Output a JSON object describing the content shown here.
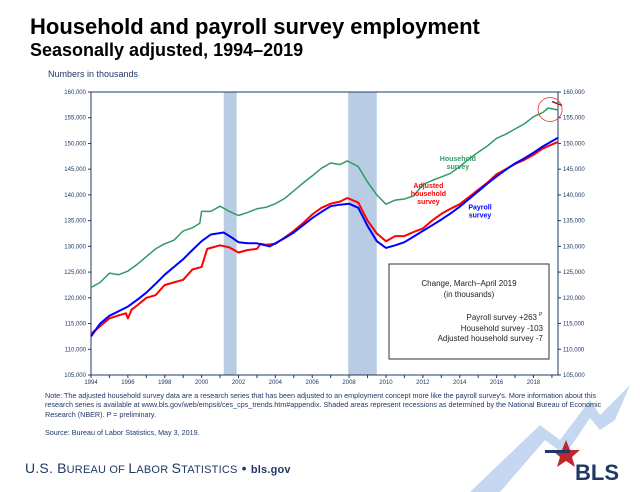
{
  "header": {
    "title": "Household and payroll survey employment",
    "subtitle": "Seasonally adjusted, 1994–2019",
    "units": "Numbers in thousands"
  },
  "chart_data": {
    "type": "line",
    "title": "Household and payroll survey employment",
    "subtitle": "Seasonally adjusted, 1994–2019",
    "ylabel": "Numbers in thousands",
    "xlim": [
      1994,
      2019.33
    ],
    "ylim": [
      105000,
      160000
    ],
    "x_ticks": [
      "1994",
      "1996",
      "1998",
      "2000",
      "2002",
      "2004",
      "2006",
      "2008",
      "2010",
      "2012",
      "2014",
      "2016",
      "2018"
    ],
    "y_ticks": [
      "105,000",
      "110,000",
      "115,000",
      "120,000",
      "125,000",
      "130,000",
      "135,000",
      "140,000",
      "145,000",
      "150,000",
      "155,000",
      "160,000"
    ],
    "recessions": [
      [
        2001.2,
        2001.9
      ],
      [
        2007.95,
        2009.5
      ]
    ],
    "recession_color": "#b8cce4",
    "annotation_circle": {
      "x": 2018.9,
      "y": 156600,
      "color": "#e03030"
    },
    "series": [
      {
        "name": "Household survey",
        "label_lines": [
          "Household",
          "survey"
        ],
        "color": "#339966",
        "x": [
          1994,
          1994.5,
          1995,
          1995.5,
          1996,
          1996.5,
          1997,
          1997.5,
          1998,
          1998.5,
          1999,
          1999.5,
          1999.9,
          2000,
          2000.5,
          2001,
          2001.5,
          2002,
          2002.5,
          2003,
          2003.5,
          2004,
          2004.5,
          2005,
          2005.5,
          2006,
          2006.5,
          2007,
          2007.5,
          2007.9,
          2008.5,
          2009,
          2009.5,
          2010,
          2010.5,
          2011,
          2011.5,
          2012,
          2012.5,
          2013,
          2013.5,
          2014,
          2014.5,
          2015,
          2015.5,
          2016,
          2016.5,
          2017,
          2017.5,
          2018,
          2018.5,
          2018.8,
          2019.33
        ],
        "y": [
          122000,
          123000,
          124800,
          124500,
          125200,
          126500,
          128000,
          129500,
          130500,
          131200,
          133000,
          133600,
          134500,
          136800,
          136800,
          137800,
          136800,
          136000,
          136600,
          137300,
          137600,
          138300,
          139300,
          140800,
          142300,
          143700,
          145200,
          146200,
          145900,
          146600,
          145500,
          142500,
          140000,
          138200,
          139000,
          139200,
          139800,
          142000,
          142800,
          143500,
          144200,
          145500,
          147000,
          148300,
          149500,
          151000,
          151800,
          152800,
          153800,
          155200,
          156000,
          156900,
          156500
        ]
      },
      {
        "name": "Adjusted household survey",
        "label_lines": [
          "Adjusted",
          "household",
          "survey"
        ],
        "color": "#ff0000",
        "x": [
          1994,
          1994.5,
          1995,
          1995.5,
          1995.9,
          1996,
          1996.2,
          1996.5,
          1997,
          1997.5,
          1998,
          1998.5,
          1999,
          1999.5,
          2000,
          2000.3,
          2000.5,
          2001,
          2001.5,
          2002,
          2002.5,
          2003,
          2003.2,
          2003.5,
          2004,
          2004.5,
          2005,
          2005.5,
          2006,
          2006.5,
          2007,
          2007.5,
          2007.9,
          2008.5,
          2009,
          2009.5,
          2010,
          2010.5,
          2011,
          2011.5,
          2012,
          2012.5,
          2013,
          2013.5,
          2014,
          2014.5,
          2015,
          2015.5,
          2016,
          2016.5,
          2017,
          2017.5,
          2018,
          2018.5,
          2019,
          2019.33
        ],
        "y": [
          113000,
          114500,
          116000,
          116600,
          117000,
          116000,
          117700,
          118500,
          120000,
          120500,
          122500,
          123000,
          123500,
          125500,
          126000,
          129500,
          129700,
          130200,
          129800,
          128800,
          129300,
          129500,
          130500,
          130300,
          130500,
          131700,
          133000,
          134500,
          136200,
          137500,
          138300,
          138700,
          139400,
          138500,
          135000,
          132500,
          131000,
          132000,
          132000,
          132800,
          133500,
          135000,
          136300,
          137300,
          138200,
          139600,
          141000,
          142400,
          144000,
          145000,
          146000,
          146800,
          147800,
          149000,
          149800,
          150300
        ]
      },
      {
        "name": "Payroll survey",
        "label_lines": [
          "Payroll",
          "survey"
        ],
        "color": "#0000ff",
        "x": [
          1994,
          1994.5,
          1995,
          1995.5,
          1996,
          1996.5,
          1997,
          1997.5,
          1998,
          1998.5,
          1999,
          1999.5,
          2000,
          2000.5,
          2001.2,
          2001.6,
          2002,
          2002.5,
          2003,
          2003.7,
          2004,
          2004.5,
          2005,
          2005.5,
          2006,
          2006.5,
          2007,
          2007.5,
          2008,
          2008.5,
          2009,
          2009.5,
          2010,
          2010.5,
          2011,
          2011.5,
          2012,
          2012.5,
          2013,
          2013.5,
          2014,
          2014.5,
          2015,
          2015.5,
          2016,
          2016.5,
          2017,
          2017.5,
          2018,
          2018.5,
          2019.33
        ],
        "y": [
          112500,
          115000,
          116500,
          117400,
          118300,
          119600,
          121000,
          122700,
          124500,
          126000,
          127500,
          129300,
          131000,
          132300,
          132700,
          131800,
          130800,
          130600,
          130600,
          130000,
          130600,
          131600,
          132700,
          134100,
          135500,
          136700,
          137800,
          138100,
          138300,
          137500,
          134000,
          131000,
          129700,
          130200,
          130800,
          131900,
          133000,
          134100,
          135200,
          136400,
          137700,
          139200,
          140700,
          142200,
          143600,
          144900,
          146100,
          147100,
          148200,
          149400,
          151100
        ]
      }
    ],
    "legend_box": {
      "title_lines": [
        "Change, March–April 2019",
        "(in thousands)"
      ],
      "rows": [
        "Payroll survey +263",
        "Household survey -103",
        "Adjusted household survey -7"
      ],
      "payroll_superscript": "P"
    }
  },
  "footer": {
    "note": "Note: The adjusted household survey data are a research series that has been adjusted to an employment concept more like the payroll survey's. More information about this research series is available at www.bls.gov/web/empsit/ces_cps_trends.htm#appendix. Shaded areas represent recessions as determined by the National Bureau of Economic Research (NBER). P = preliminary.",
    "source": "Source: Bureau of Labor Statistics, May 3, 2019.",
    "agency_us": "U.S. B",
    "agency_1": "UREAU OF ",
    "agency_l": "L",
    "agency_2": "ABOR ",
    "agency_s": "S",
    "agency_3": "TATISTICS",
    "agency_dot": " • ",
    "agency_site": "bls.gov",
    "logo_text": "BLS"
  }
}
